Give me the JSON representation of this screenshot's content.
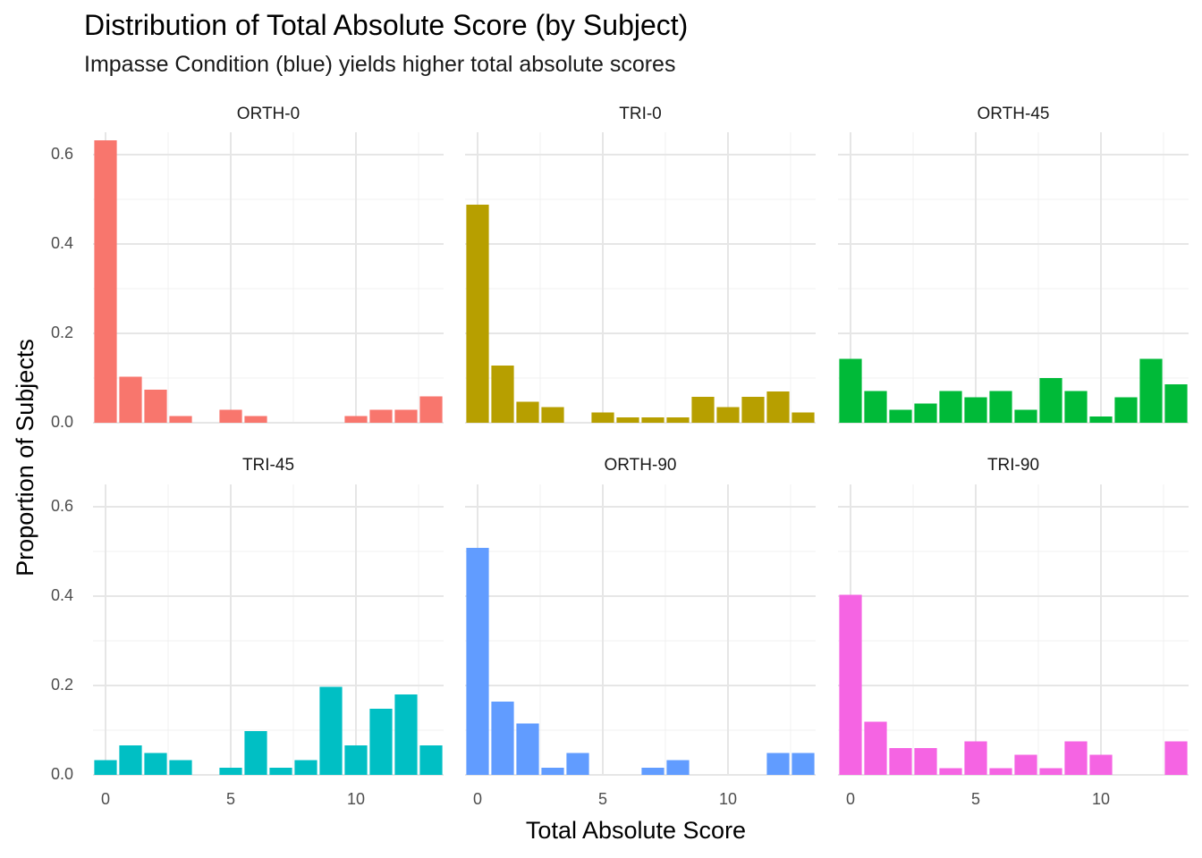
{
  "chart_data": {
    "type": "bar",
    "title": "Distribution of Total Absolute Score (by Subject)",
    "subtitle": "Impasse Condition (blue) yields higher total absolute scores",
    "xlabel": "Total Absolute Score",
    "ylabel": "Proportion of Subjects",
    "xlim": [
      -0.5,
      13.5
    ],
    "ylim": [
      0,
      0.65
    ],
    "x_ticks": [
      0,
      5,
      10
    ],
    "y_ticks": [
      0.0,
      0.2,
      0.4,
      0.6
    ],
    "x_tick_labels": [
      "0",
      "5",
      "10"
    ],
    "y_tick_labels": [
      "0.0",
      "0.2",
      "0.4",
      "0.6"
    ],
    "grid": true,
    "legend": "none",
    "x": [
      0,
      1,
      2,
      3,
      4,
      5,
      6,
      7,
      8,
      9,
      10,
      11,
      12,
      13
    ],
    "panels": [
      {
        "name": "ORTH-0",
        "color": "#F8766D",
        "values": [
          0.632,
          0.103,
          0.074,
          0.015,
          0,
          0.029,
          0.015,
          0,
          0,
          0,
          0.015,
          0.029,
          0.029,
          0.059
        ]
      },
      {
        "name": "TRI-0",
        "color": "#B79F00",
        "values": [
          0.488,
          0.128,
          0.047,
          0.035,
          0,
          0.023,
          0.012,
          0.012,
          0.012,
          0.058,
          0.035,
          0.058,
          0.07,
          0.023
        ]
      },
      {
        "name": "ORTH-45",
        "color": "#00BA38",
        "values": [
          0.143,
          0.071,
          0.029,
          0.043,
          0.071,
          0.057,
          0.071,
          0.029,
          0.1,
          0.071,
          0.014,
          0.057,
          0.143,
          0.086
        ]
      },
      {
        "name": "TRI-45",
        "color": "#00BFC4",
        "values": [
          0.033,
          0.066,
          0.049,
          0.033,
          0,
          0.016,
          0.098,
          0.016,
          0.033,
          0.197,
          0.066,
          0.148,
          0.18,
          0.066
        ]
      },
      {
        "name": "ORTH-90",
        "color": "#619CFF",
        "values": [
          0.508,
          0.164,
          0.115,
          0.016,
          0.049,
          0,
          0,
          0.016,
          0.033,
          0,
          0,
          0,
          0.049,
          0.049
        ]
      },
      {
        "name": "TRI-90",
        "color": "#F564E3",
        "values": [
          0.403,
          0.119,
          0.06,
          0.06,
          0.015,
          0.075,
          0.015,
          0.045,
          0.015,
          0.075,
          0.045,
          0,
          0,
          0.075
        ]
      }
    ]
  }
}
